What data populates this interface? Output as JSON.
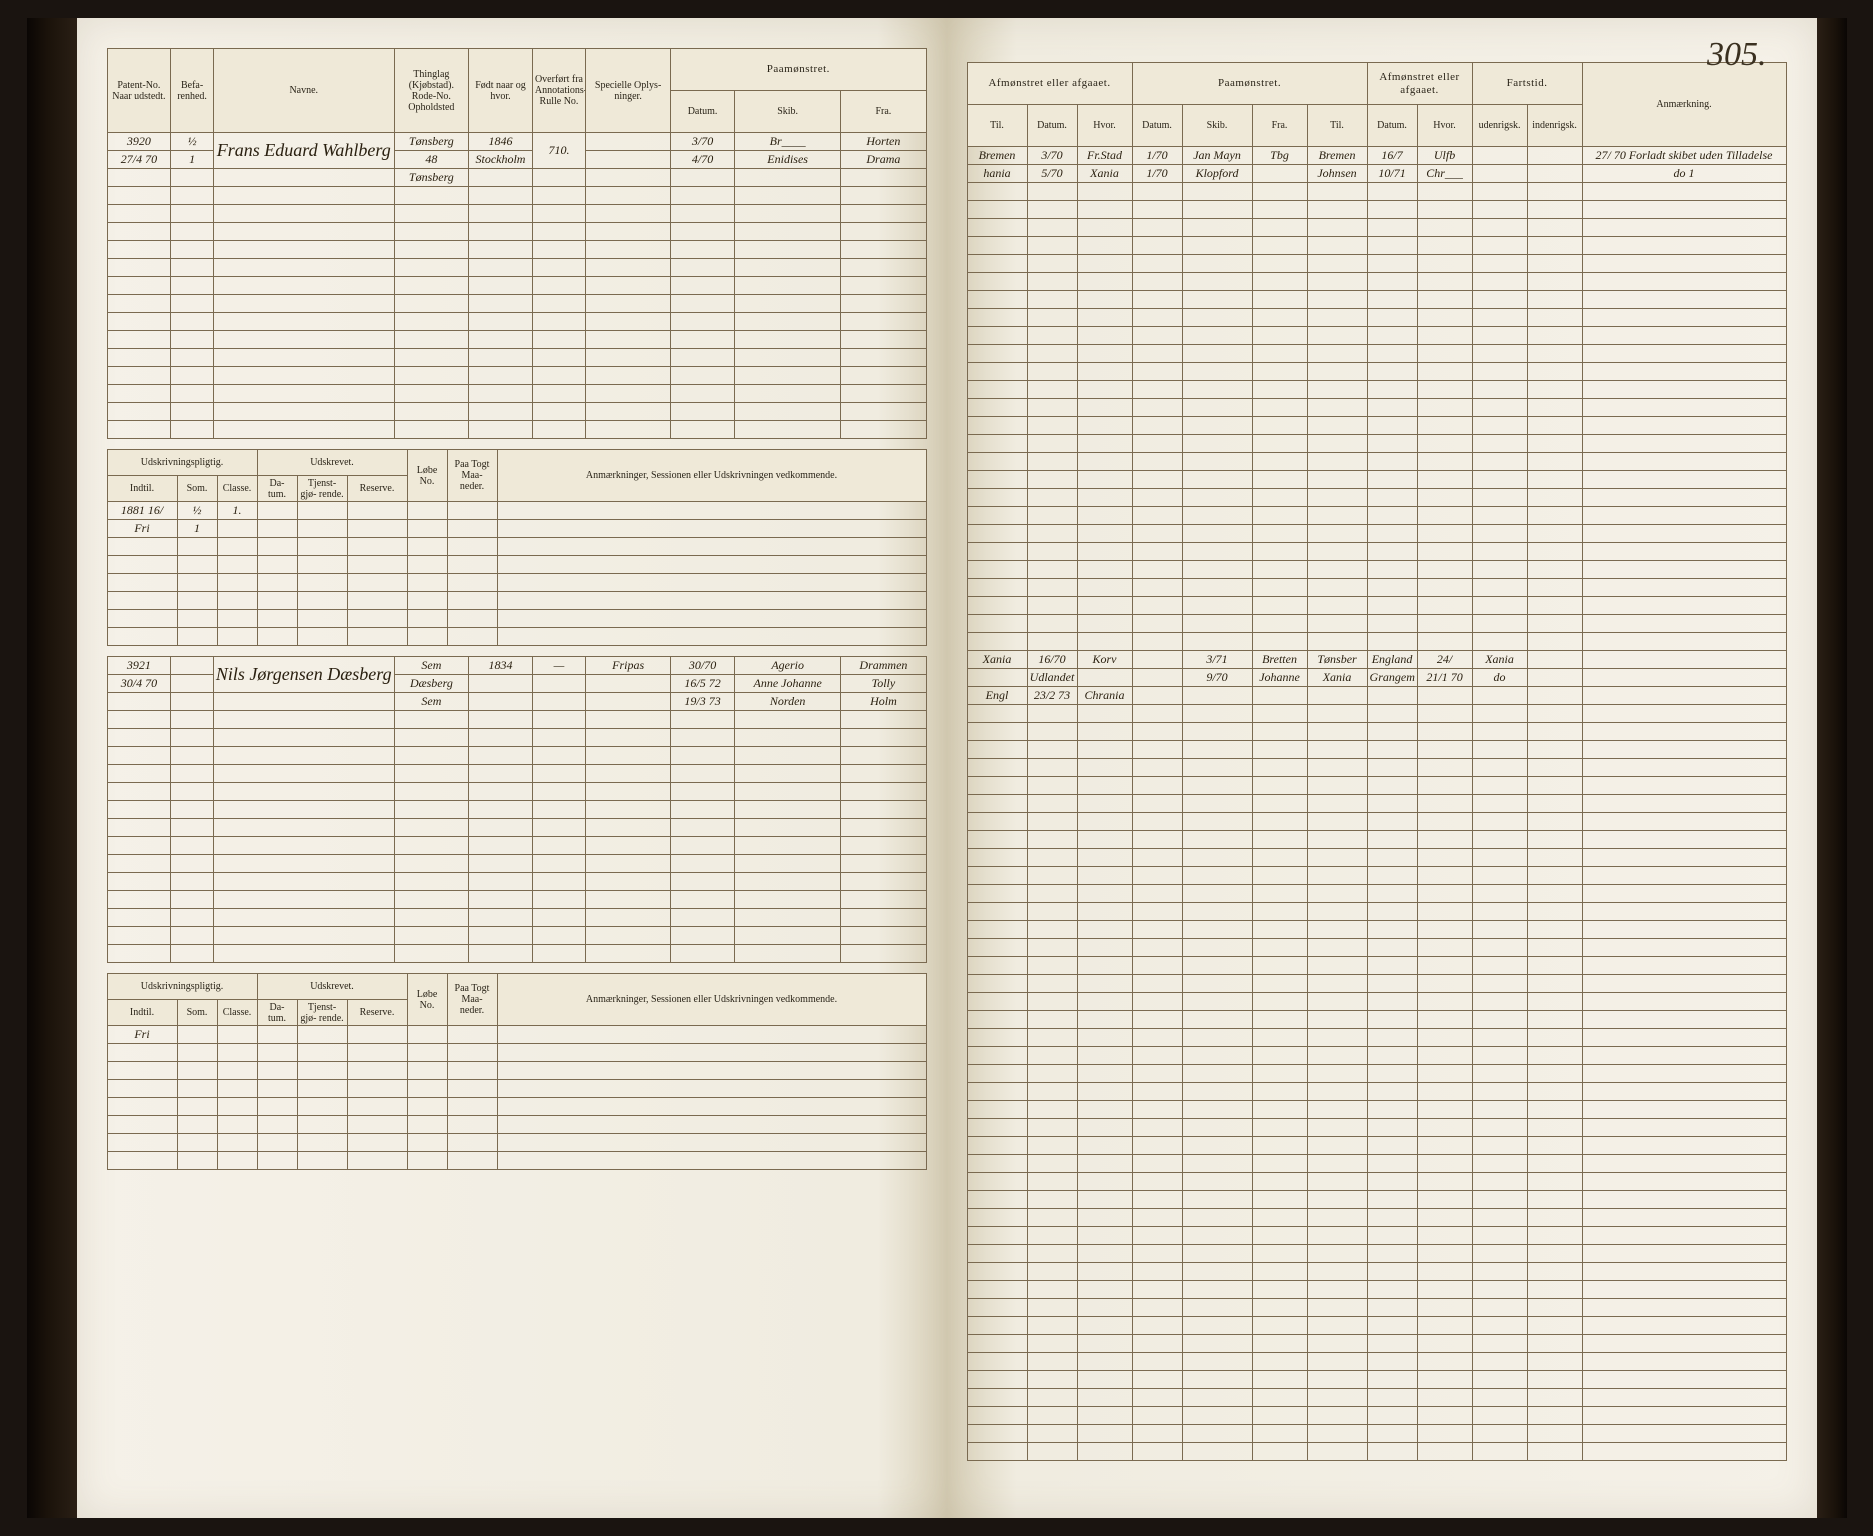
{
  "page_number": "305.",
  "colors": {
    "paper": "#f5f1e8",
    "rule": "#7a6a50",
    "ink": "#2a2010",
    "header_bg": "#efe9d8",
    "binding_dark": "#0a0604"
  },
  "left": {
    "headers1": {
      "patent": "Patent-No.\nNaar udstedt.",
      "befar": "Befa-\nrenhed.",
      "navn": "Navne.",
      "thinglag": "Thinglag (Kjøbstad). Rode-No. Opholdsted",
      "fodt": "Født naar og hvor.",
      "overfort": "Overført fra Annotations-Rulle No.",
      "specielle": "Specielle Oplys-\nninger.",
      "paamonstret": "Paamønstret.",
      "datum": "Datum.",
      "skib": "Skib.",
      "fra": "Fra."
    },
    "records": [
      {
        "patent": "3920",
        "patent_date": "27/4 70",
        "befar": [
          "½",
          "1"
        ],
        "navn": "Frans Eduard Wahlberg",
        "thinglag": [
          "Tønsberg",
          "48",
          "Tønsberg"
        ],
        "fodt": [
          "1846",
          "Stockholm"
        ],
        "overfort": "710.",
        "paa_rows": [
          {
            "datum": "3/70",
            "skib": "Br____",
            "fra": "Horten"
          },
          {
            "datum": "4/70",
            "skib": "Enidises",
            "fra": "Drama"
          }
        ]
      },
      {
        "patent": "3921",
        "patent_date": "30/4 70",
        "befar": [
          ""
        ],
        "navn": "Nils Jørgensen Dæsberg",
        "thinglag": [
          "Sem",
          "Dæsberg",
          "Sem"
        ],
        "fodt": [
          "1834",
          ""
        ],
        "overfort": "—",
        "specielle": "Fripas",
        "paa_rows": [
          {
            "datum": "30/70",
            "skib": "Agerio",
            "fra": "Drammen"
          },
          {
            "datum": "16/5 72",
            "skib": "Anne Johanne",
            "fra": "Tolly"
          },
          {
            "datum": "19/3 73",
            "skib": "Norden",
            "fra": "Holm"
          }
        ]
      }
    ],
    "mid_headers": {
      "udskr": "Udskrivningspligtig.",
      "udstr": "Udskrevet.",
      "indtil": "Indtil.",
      "som": "Som.",
      "classe": "Classe.",
      "datum": "Da-\ntum.",
      "tjenst": "Tjenst-\ngjø-\nrende.",
      "reserve": "Reserve.",
      "lobe": "Løbe\nNo.",
      "paa": "Paa\nTogt\nMaa-\nneder.",
      "anm": "Anmærkninger,\nSessionen eller Udskrivningen vedkommende."
    },
    "mid_rows1": [
      {
        "indtil": "1881 16/",
        "som": "½",
        "classe": "1."
      },
      {
        "indtil": "Fri",
        "som": "1",
        "classe": ""
      }
    ],
    "mid_rows2": [
      {
        "indtil": "Fri",
        "som": "",
        "classe": ""
      }
    ]
  },
  "right": {
    "headers": {
      "afm1": "Afmønstret eller afgaaet.",
      "paam": "Paamønstret.",
      "afm2": "Afmønstret eller afgaaet.",
      "fartstid": "Fartstid.",
      "anm": "Anmærkning.",
      "til": "Til.",
      "datum": "Datum.",
      "hvor": "Hvor.",
      "skib": "Skib.",
      "fra": "Fra.",
      "uden": "udenrigsk.",
      "inden": "indenrigsk."
    },
    "rows_block1": [
      {
        "c": [
          "Bremen",
          "3/70",
          "Fr.Stad",
          "1/70",
          "Jan Mayn",
          "Tbg",
          "Bremen",
          "16/7",
          "Ulfb",
          "",
          ""
        ],
        "anm": "27/ 70 Forladt skibet uden Tilladelse"
      },
      {
        "c": [
          "hania",
          "5/70",
          "Xania",
          "1/70",
          "Klopford",
          "",
          "Johnsen",
          "10/71",
          "Chr___",
          "",
          ""
        ],
        "anm": "do 1"
      }
    ],
    "rows_block2": [
      {
        "c": [
          "Xania",
          "16/70",
          "Korv",
          "",
          "3/71",
          "Bretten",
          "Tønsber",
          "England",
          "24/",
          "Xania",
          ""
        ],
        "anm": ""
      },
      {
        "c": [
          "",
          "Udlandet",
          "",
          "",
          "9/70",
          "Johanne",
          "Xania",
          "Grangem",
          "21/1 70",
          "do",
          ""
        ],
        "anm": ""
      },
      {
        "c": [
          "Engl",
          "23/2 73",
          "Chrania",
          "",
          "",
          "",
          "",
          "",
          "",
          "",
          ""
        ],
        "anm": ""
      }
    ]
  }
}
